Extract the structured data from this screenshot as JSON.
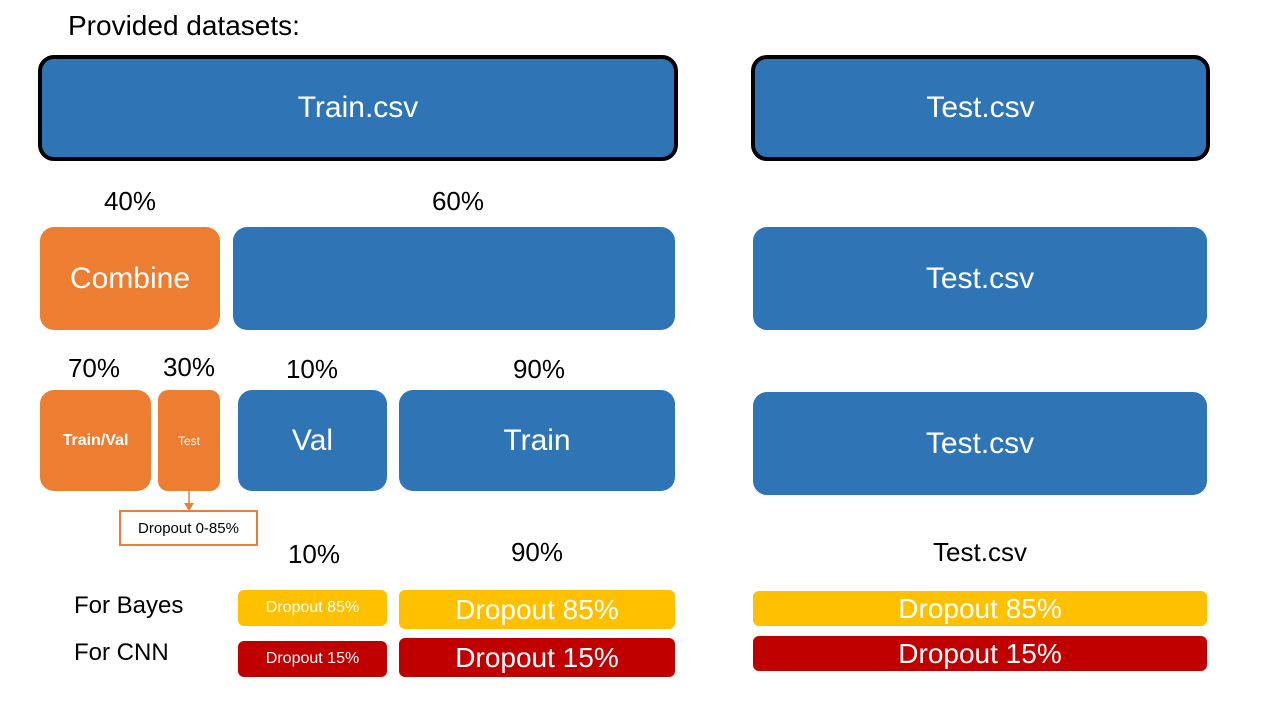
{
  "heading": "Provided datasets:",
  "row1": {
    "train": "Train.csv",
    "test": "Test.csv"
  },
  "row2": {
    "pct_left": "40%",
    "pct_right": "60%",
    "combine": "Combine",
    "test": "Test.csv"
  },
  "row3": {
    "pct_trainval": "70%",
    "pct_test": "30%",
    "pct_val": "10%",
    "pct_train": "90%",
    "trainval": "Train/Val",
    "testsmall": "Test",
    "val": "Val",
    "train": "Train",
    "test": "Test.csv",
    "callout": "Dropout 0-85%"
  },
  "row4": {
    "pct_val": "10%",
    "pct_train": "90%",
    "test_label": "Test.csv",
    "for_bayes": "For Bayes",
    "for_cnn": "For CNN",
    "bayes_val": "Dropout 85%",
    "bayes_train": "Dropout 85%",
    "bayes_test": "Dropout 85%",
    "cnn_val": "Dropout 15%",
    "cnn_train": "Dropout 15%",
    "cnn_test": "Dropout 15%"
  },
  "colors": {
    "blue": "#2f75b6",
    "orange": "#ed7d31",
    "yellow": "#ffc000",
    "red": "#c00000"
  }
}
